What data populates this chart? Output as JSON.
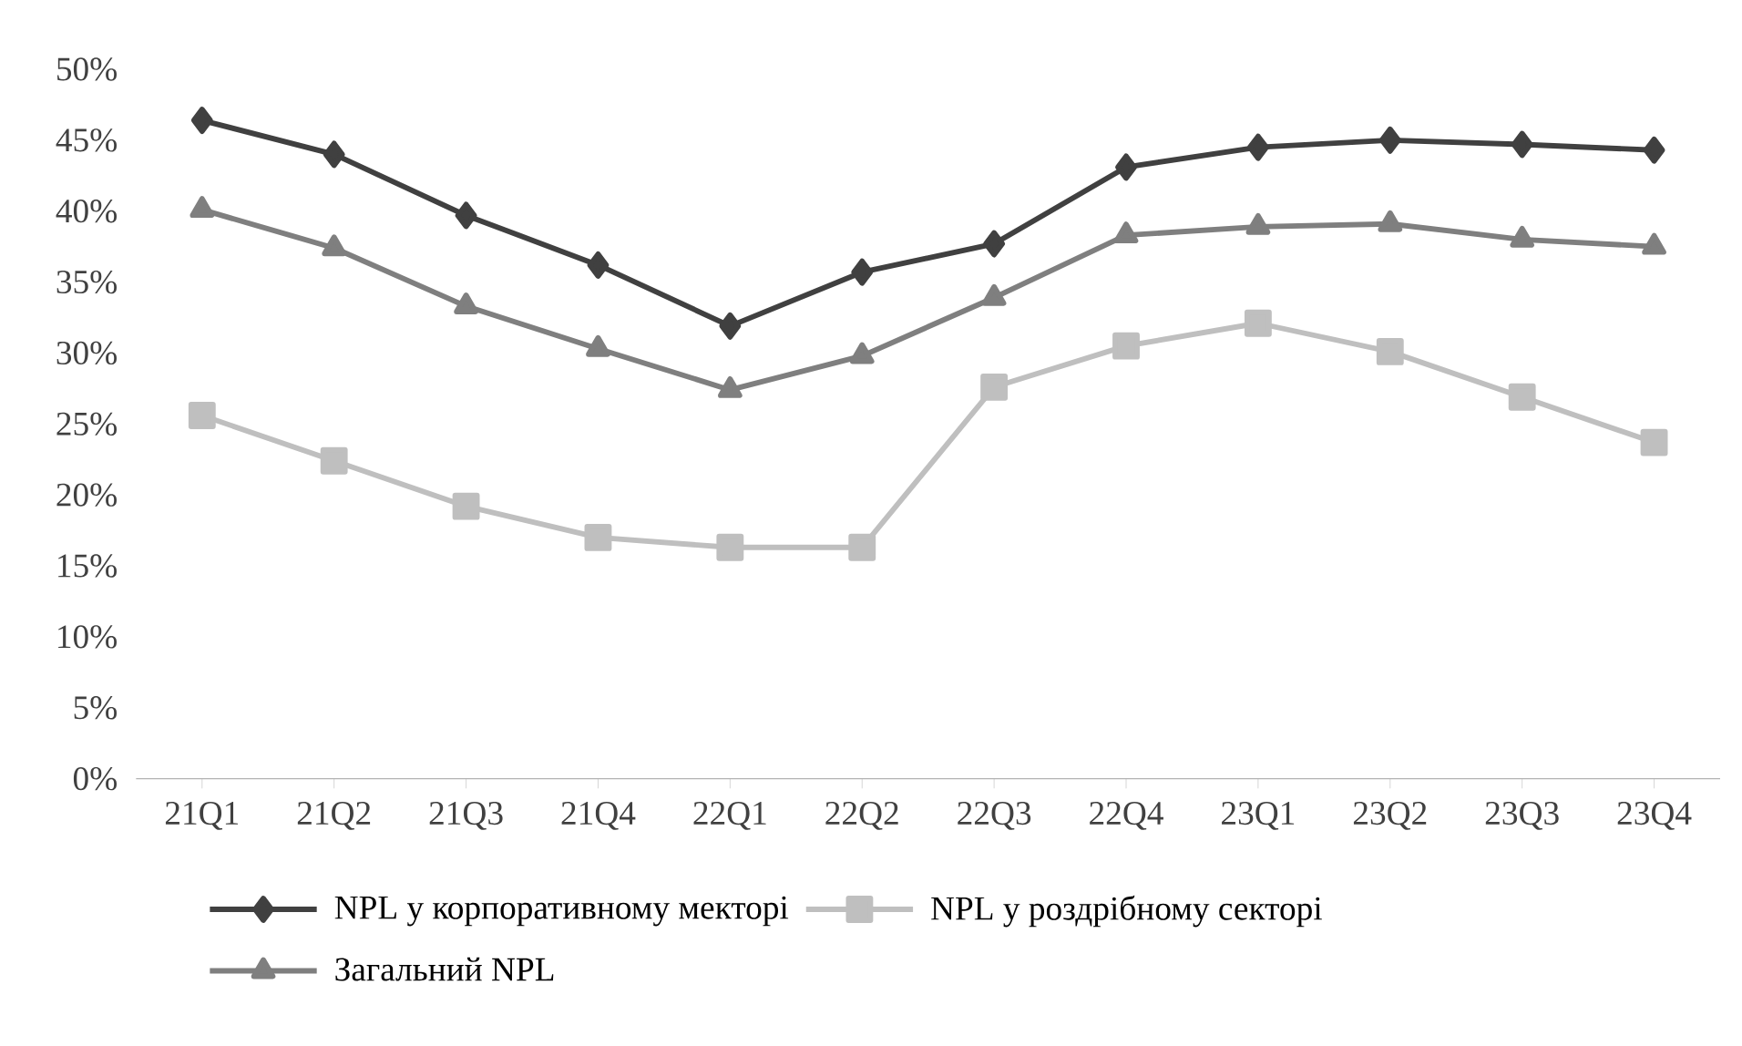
{
  "chart_data": {
    "type": "line",
    "categories": [
      "21Q1",
      "21Q2",
      "21Q3",
      "21Q4",
      "22Q1",
      "22Q2",
      "22Q3",
      "22Q4",
      "23Q1",
      "23Q2",
      "23Q3",
      "23Q4"
    ],
    "series": [
      {
        "name": "NPL у корпоративному мекторі",
        "color": "#404040",
        "marker": "diamond",
        "values": [
          46.4,
          44.0,
          39.7,
          36.2,
          31.9,
          35.7,
          37.7,
          43.1,
          44.5,
          45.0,
          44.7,
          44.3
        ]
      },
      {
        "name": "NPL у роздрібному секторі",
        "color": "#bfbfbf",
        "marker": "square",
        "values": [
          25.6,
          22.4,
          19.2,
          17.0,
          16.3,
          16.3,
          27.6,
          30.5,
          32.1,
          30.1,
          26.9,
          23.7
        ]
      },
      {
        "name": "Загальний NPL",
        "color": "#7f7f7f",
        "marker": "triangle",
        "values": [
          40.1,
          37.4,
          33.3,
          30.3,
          27.4,
          29.8,
          33.9,
          38.3,
          38.9,
          39.1,
          38.0,
          37.5
        ]
      }
    ],
    "ylim": [
      0,
      50
    ],
    "yticks": [
      {
        "value": 0,
        "label": "0%"
      },
      {
        "value": 5,
        "label": "5%"
      },
      {
        "value": 10,
        "label": "10%"
      },
      {
        "value": 15,
        "label": "15%"
      },
      {
        "value": 20,
        "label": "20%"
      },
      {
        "value": 25,
        "label": "25%"
      },
      {
        "value": 30,
        "label": "30%"
      },
      {
        "value": 35,
        "label": "35%"
      },
      {
        "value": 40,
        "label": "40%"
      },
      {
        "value": 45,
        "label": "45%"
      },
      {
        "value": 50,
        "label": "50%"
      }
    ],
    "grid": false,
    "legend": "bottom",
    "line_style": "solid"
  }
}
